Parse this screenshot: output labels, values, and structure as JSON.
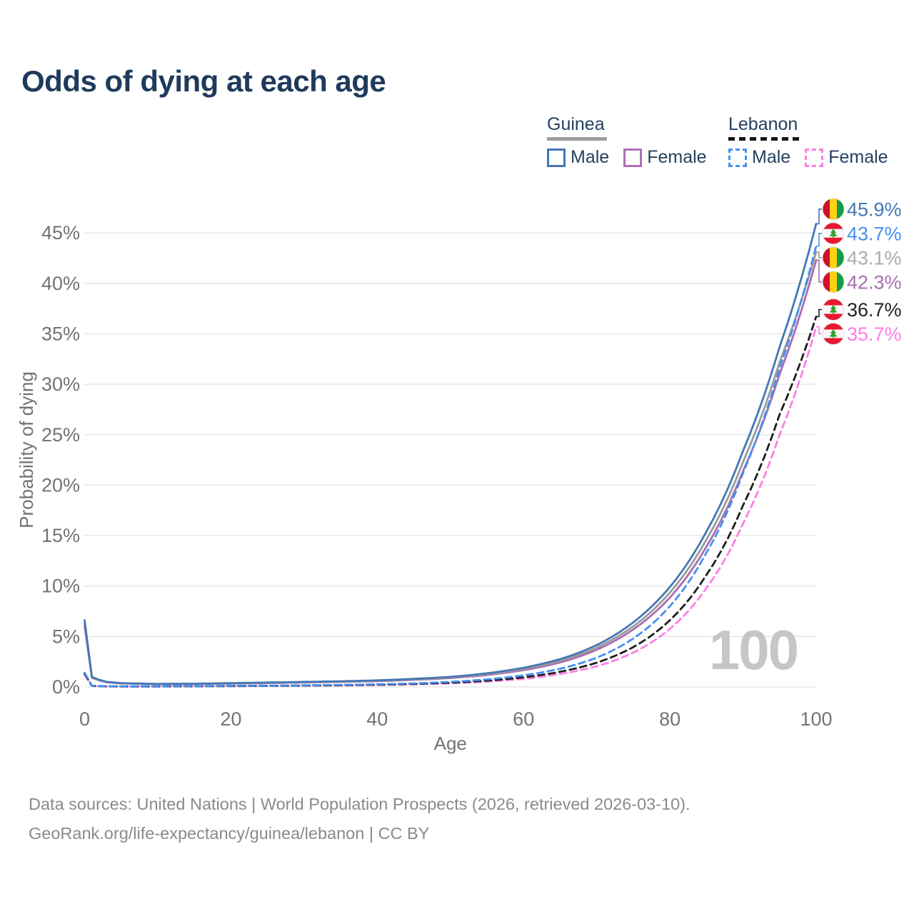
{
  "page": {
    "title": "Odds of dying at each age",
    "watermark": "100",
    "source_line1": "Data sources: United Nations | World Population Prospects (2026, retrieved 2026-03-10).",
    "source_line2": "GeoRank.org/life-expectancy/guinea/lebanon | CC BY"
  },
  "legend": {
    "groups": [
      {
        "label": "Guinea",
        "line_style": "solid",
        "line_color": "#9e9e9e",
        "items": [
          {
            "label": "Male",
            "color": "#4577b5",
            "dash": false
          },
          {
            "label": "Female",
            "color": "#b06fb6",
            "dash": false
          }
        ]
      },
      {
        "label": "Lebanon",
        "line_style": "dashed",
        "line_color": "#161616",
        "items": [
          {
            "label": "Male",
            "color": "#4590f0",
            "dash": true
          },
          {
            "label": "Female",
            "color": "#ff7de8",
            "dash": true
          }
        ]
      }
    ]
  },
  "chart_data": {
    "type": "line",
    "title": "Odds of dying at each age",
    "xlabel": "Age",
    "ylabel": "Probability of dying",
    "x_ticks": [
      0,
      20,
      40,
      60,
      80,
      100
    ],
    "y_ticks": [
      0,
      5,
      10,
      15,
      20,
      25,
      30,
      35,
      40,
      45
    ],
    "xlim": [
      0,
      100
    ],
    "ylim": [
      0,
      47
    ],
    "grid": true,
    "legend_position": "top-right",
    "series": [
      {
        "name": "Guinea Male",
        "color": "#4577b5",
        "dash": false,
        "flag": "guinea",
        "end_label": "45.9%",
        "end_value": 45.9,
        "label_color": "#4577b5",
        "points": [
          [
            0,
            6.6
          ],
          [
            1,
            1.0
          ],
          [
            3,
            0.5
          ],
          [
            5,
            0.38
          ],
          [
            10,
            0.3
          ],
          [
            15,
            0.32
          ],
          [
            20,
            0.38
          ],
          [
            25,
            0.44
          ],
          [
            30,
            0.5
          ],
          [
            35,
            0.56
          ],
          [
            40,
            0.65
          ],
          [
            45,
            0.8
          ],
          [
            50,
            1.0
          ],
          [
            55,
            1.35
          ],
          [
            60,
            1.9
          ],
          [
            65,
            2.75
          ],
          [
            70,
            4.15
          ],
          [
            75,
            6.4
          ],
          [
            80,
            9.9
          ],
          [
            85,
            15.4
          ],
          [
            90,
            23.4
          ],
          [
            95,
            33.7
          ],
          [
            100,
            45.9
          ]
        ]
      },
      {
        "name": "Lebanon Male",
        "color": "#4590f0",
        "dash": true,
        "flag": "lebanon",
        "end_label": "43.7%",
        "end_value": 43.7,
        "label_color": "#4590f0",
        "points": [
          [
            0,
            1.4
          ],
          [
            1,
            0.12
          ],
          [
            3,
            0.07
          ],
          [
            5,
            0.06
          ],
          [
            10,
            0.06
          ],
          [
            15,
            0.08
          ],
          [
            20,
            0.11
          ],
          [
            25,
            0.13
          ],
          [
            30,
            0.16
          ],
          [
            35,
            0.2
          ],
          [
            40,
            0.26
          ],
          [
            45,
            0.35
          ],
          [
            50,
            0.5
          ],
          [
            55,
            0.75
          ],
          [
            60,
            1.15
          ],
          [
            65,
            1.8
          ],
          [
            70,
            2.9
          ],
          [
            75,
            4.8
          ],
          [
            80,
            8.0
          ],
          [
            85,
            13.3
          ],
          [
            90,
            21.2
          ],
          [
            95,
            31.6
          ],
          [
            100,
            43.7
          ]
        ]
      },
      {
        "name": "Guinea Both sexes",
        "color": "#9b9b9b",
        "dash": false,
        "flag": "guinea",
        "end_label": "43.1%",
        "end_value": 43.1,
        "label_color": "#ababab",
        "points": [
          [
            0,
            6.3
          ],
          [
            1,
            0.95
          ],
          [
            3,
            0.48
          ],
          [
            5,
            0.36
          ],
          [
            10,
            0.28
          ],
          [
            15,
            0.3
          ],
          [
            20,
            0.36
          ],
          [
            25,
            0.41
          ],
          [
            30,
            0.47
          ],
          [
            35,
            0.53
          ],
          [
            40,
            0.61
          ],
          [
            45,
            0.75
          ],
          [
            50,
            0.94
          ],
          [
            55,
            1.27
          ],
          [
            60,
            1.78
          ],
          [
            65,
            2.58
          ],
          [
            70,
            3.9
          ],
          [
            75,
            6.0
          ],
          [
            80,
            9.35
          ],
          [
            85,
            14.6
          ],
          [
            90,
            22.3
          ],
          [
            95,
            32.2
          ],
          [
            100,
            43.1
          ]
        ]
      },
      {
        "name": "Guinea Female",
        "color": "#a86db2",
        "dash": false,
        "flag": "guinea",
        "end_label": "42.3%",
        "end_value": 42.3,
        "label_color": "#a86db2",
        "points": [
          [
            0,
            6.0
          ],
          [
            1,
            0.9
          ],
          [
            3,
            0.46
          ],
          [
            5,
            0.34
          ],
          [
            10,
            0.27
          ],
          [
            15,
            0.28
          ],
          [
            20,
            0.33
          ],
          [
            25,
            0.38
          ],
          [
            30,
            0.44
          ],
          [
            35,
            0.5
          ],
          [
            40,
            0.57
          ],
          [
            45,
            0.7
          ],
          [
            50,
            0.88
          ],
          [
            55,
            1.18
          ],
          [
            60,
            1.66
          ],
          [
            65,
            2.42
          ],
          [
            70,
            3.68
          ],
          [
            75,
            5.7
          ],
          [
            80,
            8.85
          ],
          [
            85,
            13.9
          ],
          [
            90,
            21.4
          ],
          [
            95,
            31.0
          ],
          [
            100,
            42.3
          ]
        ]
      },
      {
        "name": "Lebanon Both sexes",
        "color": "#1f1f1f",
        "dash": true,
        "flag": "lebanon",
        "end_label": "36.7%",
        "end_value": 36.7,
        "label_color": "#222222",
        "points": [
          [
            0,
            1.3
          ],
          [
            1,
            0.11
          ],
          [
            3,
            0.06
          ],
          [
            5,
            0.05
          ],
          [
            10,
            0.05
          ],
          [
            15,
            0.07
          ],
          [
            20,
            0.09
          ],
          [
            25,
            0.11
          ],
          [
            30,
            0.14
          ],
          [
            35,
            0.17
          ],
          [
            40,
            0.22
          ],
          [
            45,
            0.3
          ],
          [
            50,
            0.42
          ],
          [
            55,
            0.62
          ],
          [
            60,
            0.95
          ],
          [
            65,
            1.5
          ],
          [
            70,
            2.4
          ],
          [
            75,
            3.95
          ],
          [
            80,
            6.6
          ],
          [
            85,
            11.1
          ],
          [
            90,
            18.0
          ],
          [
            95,
            27.0
          ],
          [
            100,
            36.7
          ]
        ]
      },
      {
        "name": "Lebanon Female",
        "color": "#ff7de8",
        "dash": true,
        "flag": "lebanon",
        "end_label": "35.7%",
        "end_value": 35.7,
        "label_color": "#ff7de8",
        "points": [
          [
            0,
            1.2
          ],
          [
            1,
            0.1
          ],
          [
            3,
            0.055
          ],
          [
            5,
            0.045
          ],
          [
            10,
            0.045
          ],
          [
            15,
            0.06
          ],
          [
            20,
            0.08
          ],
          [
            25,
            0.1
          ],
          [
            30,
            0.12
          ],
          [
            35,
            0.15
          ],
          [
            40,
            0.19
          ],
          [
            45,
            0.26
          ],
          [
            50,
            0.36
          ],
          [
            55,
            0.53
          ],
          [
            60,
            0.8
          ],
          [
            65,
            1.28
          ],
          [
            70,
            2.05
          ],
          [
            75,
            3.4
          ],
          [
            80,
            5.75
          ],
          [
            85,
            9.8
          ],
          [
            90,
            16.2
          ],
          [
            95,
            25.0
          ],
          [
            100,
            35.7
          ]
        ]
      }
    ],
    "flag_colors": {
      "guinea": {
        "red": "#ce1126",
        "yellow": "#fcd116",
        "green": "#0f9d45"
      },
      "lebanon": {
        "red": "#e8192e",
        "white": "#f7f7f7",
        "cedar": "#33a02c"
      }
    }
  }
}
